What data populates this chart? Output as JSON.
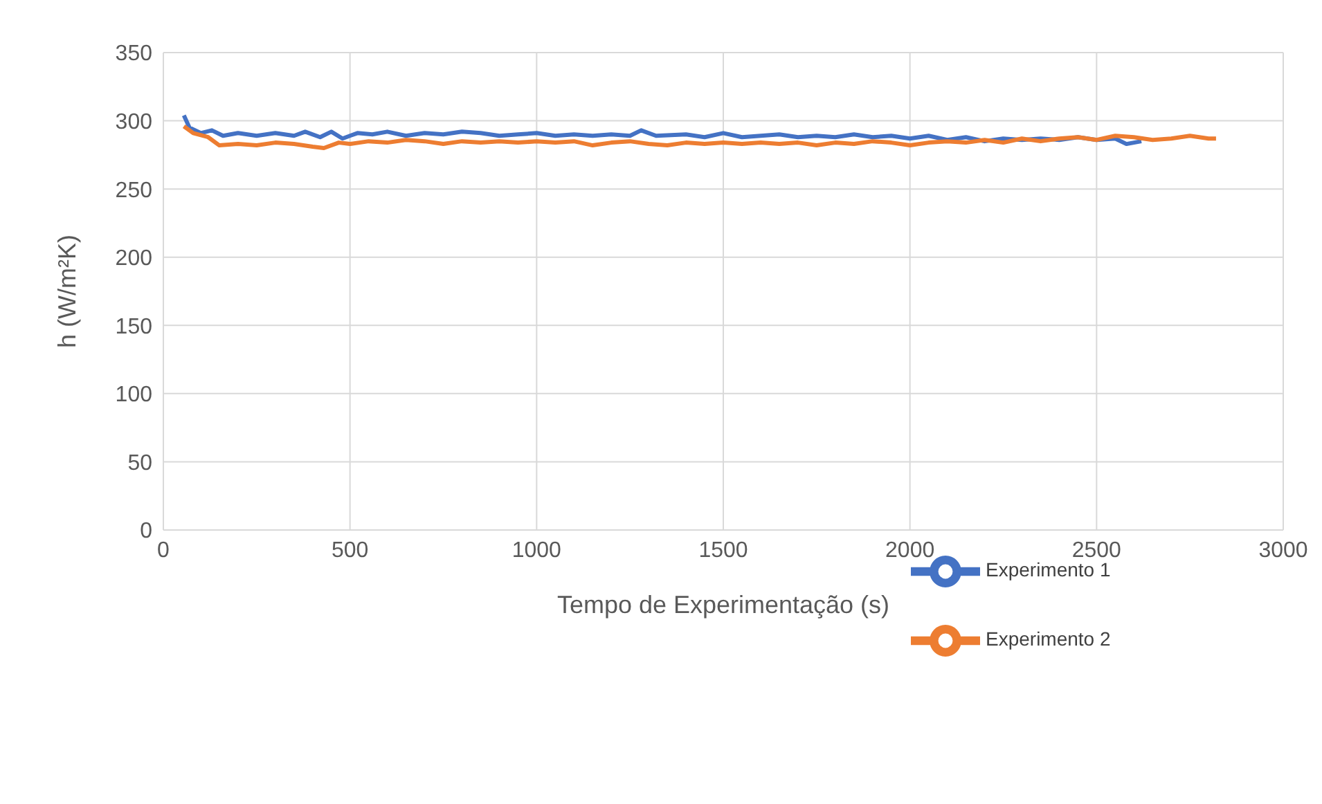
{
  "chart_data": {
    "type": "line",
    "xlabel": "Tempo de Experimentação (s)",
    "ylabel": "h (W/m²K)",
    "xlim": [
      0,
      3000
    ],
    "xticks": [
      0,
      500,
      1000,
      1500,
      2000,
      2500,
      3000
    ],
    "ylim": [
      0,
      350
    ],
    "yticks": [
      0,
      50,
      100,
      150,
      200,
      250,
      300,
      350
    ],
    "grid": true,
    "legend": "bottom right",
    "marker": "none",
    "line_style": "solid",
    "series": [
      {
        "name": "Experimento 1",
        "color": "#4472c4",
        "x": [
          55,
          70,
          100,
          130,
          160,
          200,
          250,
          300,
          350,
          380,
          420,
          450,
          480,
          520,
          560,
          600,
          650,
          700,
          750,
          800,
          850,
          900,
          950,
          1000,
          1050,
          1100,
          1150,
          1200,
          1250,
          1280,
          1320,
          1400,
          1450,
          1500,
          1550,
          1600,
          1650,
          1700,
          1750,
          1800,
          1850,
          1900,
          1950,
          2000,
          2050,
          2100,
          2150,
          2200,
          2250,
          2300,
          2350,
          2400,
          2450,
          2500,
          2550,
          2580,
          2620
        ],
        "values": [
          304,
          295,
          291,
          293,
          289,
          291,
          289,
          291,
          289,
          292,
          288,
          292,
          287,
          291,
          290,
          292,
          289,
          291,
          290,
          292,
          291,
          289,
          290,
          291,
          289,
          290,
          289,
          290,
          289,
          293,
          289,
          290,
          288,
          291,
          288,
          289,
          290,
          288,
          289,
          288,
          290,
          288,
          289,
          287,
          289,
          286,
          288,
          285,
          287,
          286,
          287,
          286,
          288,
          286,
          287,
          283,
          285
        ]
      },
      {
        "name": "Experimento 2",
        "color": "#ed7d31",
        "x": [
          55,
          80,
          120,
          150,
          200,
          250,
          300,
          350,
          400,
          430,
          470,
          500,
          550,
          600,
          650,
          700,
          750,
          800,
          850,
          900,
          950,
          1000,
          1050,
          1100,
          1150,
          1200,
          1250,
          1300,
          1350,
          1400,
          1450,
          1500,
          1550,
          1600,
          1650,
          1700,
          1750,
          1800,
          1850,
          1900,
          1950,
          2000,
          2050,
          2100,
          2150,
          2200,
          2250,
          2300,
          2350,
          2400,
          2450,
          2500,
          2550,
          2600,
          2650,
          2700,
          2750,
          2800,
          2820
        ],
        "values": [
          296,
          291,
          288,
          282,
          283,
          282,
          284,
          283,
          281,
          280,
          284,
          283,
          285,
          284,
          286,
          285,
          283,
          285,
          284,
          285,
          284,
          285,
          284,
          285,
          282,
          284,
          285,
          283,
          282,
          284,
          283,
          284,
          283,
          284,
          283,
          284,
          282,
          284,
          283,
          285,
          284,
          282,
          284,
          285,
          284,
          286,
          284,
          287,
          285,
          287,
          288,
          286,
          289,
          288,
          286,
          287,
          289,
          287,
          287
        ]
      }
    ]
  }
}
